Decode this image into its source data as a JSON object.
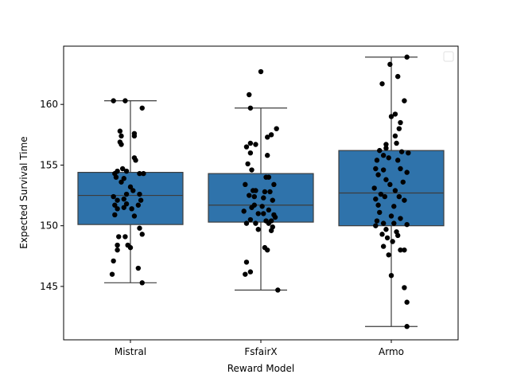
{
  "chart_data": {
    "type": "box",
    "title": "",
    "xlabel": "Reward Model",
    "ylabel": "Expected Survival Time",
    "ylim": [
      140.6,
      164.8
    ],
    "yticks": [
      145,
      150,
      155,
      160
    ],
    "categories": [
      "Mistral",
      "FsfairX",
      "Armo"
    ],
    "legend": "top-right (empty)",
    "grid": false,
    "colors": {
      "box": "#2f73ab",
      "edge": "#3d3d3d",
      "points": "#000000"
    },
    "boxes": [
      {
        "name": "Mistral",
        "whisker_low": 145.3,
        "q1": 150.1,
        "median": 152.5,
        "q3": 154.4,
        "whisker_high": 160.3
      },
      {
        "name": "FsfairX",
        "whisker_low": 144.7,
        "q1": 150.3,
        "median": 151.7,
        "q3": 154.3,
        "whisker_high": 159.7
      },
      {
        "name": "Armo",
        "whisker_low": 141.7,
        "q1": 150.0,
        "median": 152.7,
        "q3": 156.2,
        "whisker_high": 163.9
      }
    ],
    "points": [
      [
        [
          -0.13,
          160.3
        ],
        [
          -0.04,
          160.3
        ],
        [
          0.09,
          159.7
        ],
        [
          -0.08,
          157.8
        ],
        [
          -0.07,
          157.4
        ],
        [
          0.03,
          157.6
        ],
        [
          0.03,
          157.4
        ],
        [
          -0.08,
          156.9
        ],
        [
          -0.07,
          156.7
        ],
        [
          0.03,
          155.6
        ],
        [
          0.04,
          155.4
        ],
        [
          -0.12,
          154.3
        ],
        [
          -0.1,
          154.5
        ],
        [
          -0.06,
          154.7
        ],
        [
          -0.03,
          154.5
        ],
        [
          0.07,
          154.3
        ],
        [
          0.1,
          154.3
        ],
        [
          -0.11,
          154.0
        ],
        [
          -0.05,
          153.9
        ],
        [
          -0.07,
          153.6
        ],
        [
          0.0,
          153.2
        ],
        [
          -0.13,
          152.4
        ],
        [
          -0.03,
          152.6
        ],
        [
          0.02,
          152.9
        ],
        [
          0.07,
          152.6
        ],
        [
          -0.1,
          152.1
        ],
        [
          -0.05,
          152.2
        ],
        [
          0.08,
          152.1
        ],
        [
          -0.12,
          151.7
        ],
        [
          -0.03,
          151.8
        ],
        [
          0.06,
          151.7
        ],
        [
          -0.1,
          151.4
        ],
        [
          -0.05,
          151.5
        ],
        [
          0.01,
          151.4
        ],
        [
          -0.12,
          150.9
        ],
        [
          0.03,
          150.8
        ],
        [
          0.07,
          149.8
        ],
        [
          -0.09,
          149.1
        ],
        [
          -0.04,
          149.1
        ],
        [
          0.09,
          149.3
        ],
        [
          -0.1,
          148.4
        ],
        [
          -0.02,
          148.4
        ],
        [
          0.0,
          148.2
        ],
        [
          -0.1,
          148.0
        ],
        [
          -0.13,
          147.1
        ],
        [
          0.06,
          146.5
        ],
        [
          -0.14,
          146.0
        ],
        [
          0.09,
          145.3
        ]
      ],
      [
        [
          0.0,
          162.7
        ],
        [
          -0.09,
          160.8
        ],
        [
          -0.08,
          159.7
        ],
        [
          0.12,
          158.0
        ],
        [
          0.05,
          157.3
        ],
        [
          0.08,
          157.5
        ],
        [
          -0.08,
          156.8
        ],
        [
          -0.11,
          156.5
        ],
        [
          -0.04,
          156.7
        ],
        [
          -0.08,
          156.0
        ],
        [
          0.05,
          155.8
        ],
        [
          -0.1,
          155.1
        ],
        [
          -0.07,
          154.6
        ],
        [
          0.04,
          154.0
        ],
        [
          0.06,
          154.0
        ],
        [
          -0.12,
          153.4
        ],
        [
          0.1,
          153.4
        ],
        [
          -0.06,
          152.9
        ],
        [
          -0.04,
          152.9
        ],
        [
          0.03,
          152.8
        ],
        [
          0.07,
          152.8
        ],
        [
          -0.09,
          152.5
        ],
        [
          -0.05,
          152.4
        ],
        [
          0.02,
          152.3
        ],
        [
          0.09,
          152.1
        ],
        [
          -0.05,
          151.7
        ],
        [
          -0.07,
          151.5
        ],
        [
          0.01,
          151.6
        ],
        [
          0.06,
          151.3
        ],
        [
          -0.13,
          151.2
        ],
        [
          -0.02,
          151.0
        ],
        [
          0.02,
          151.0
        ],
        [
          0.1,
          150.9
        ],
        [
          -0.08,
          150.5
        ],
        [
          0.04,
          150.4
        ],
        [
          0.08,
          150.4
        ],
        [
          0.11,
          150.7
        ],
        [
          -0.11,
          150.2
        ],
        [
          -0.04,
          150.2
        ],
        [
          0.06,
          150.2
        ],
        [
          0.09,
          149.9
        ],
        [
          -0.02,
          149.7
        ],
        [
          0.08,
          149.6
        ],
        [
          0.03,
          148.2
        ],
        [
          0.05,
          148.0
        ],
        [
          -0.11,
          147.0
        ],
        [
          -0.08,
          146.2
        ],
        [
          -0.12,
          146.0
        ],
        [
          0.13,
          144.7
        ]
      ],
      [
        [
          -0.01,
          163.3
        ],
        [
          0.12,
          163.9
        ],
        [
          0.05,
          162.3
        ],
        [
          -0.07,
          161.7
        ],
        [
          0.1,
          160.3
        ],
        [
          0.0,
          159.0
        ],
        [
          0.03,
          159.2
        ],
        [
          0.07,
          158.5
        ],
        [
          0.06,
          158.0
        ],
        [
          0.03,
          157.4
        ],
        [
          -0.04,
          156.7
        ],
        [
          0.04,
          156.8
        ],
        [
          -0.09,
          156.2
        ],
        [
          -0.04,
          156.4
        ],
        [
          0.08,
          156.1
        ],
        [
          0.13,
          156.0
        ],
        [
          -0.06,
          155.8
        ],
        [
          -0.11,
          155.4
        ],
        [
          -0.02,
          155.6
        ],
        [
          0.05,
          155.4
        ],
        [
          -0.12,
          154.7
        ],
        [
          -0.06,
          154.6
        ],
        [
          0.07,
          154.7
        ],
        [
          0.12,
          154.4
        ],
        [
          -0.1,
          154.2
        ],
        [
          -0.04,
          153.8
        ],
        [
          0.09,
          153.6
        ],
        [
          -0.01,
          153.4
        ],
        [
          -0.13,
          153.1
        ],
        [
          0.03,
          152.9
        ],
        [
          -0.08,
          152.6
        ],
        [
          -0.12,
          152.2
        ],
        [
          -0.05,
          152.4
        ],
        [
          0.06,
          152.4
        ],
        [
          0.1,
          152.1
        ],
        [
          -0.1,
          151.7
        ],
        [
          0.02,
          151.6
        ],
        [
          -0.09,
          151.1
        ],
        [
          0.0,
          150.8
        ],
        [
          0.07,
          150.6
        ],
        [
          -0.11,
          150.4
        ],
        [
          -0.06,
          150.2
        ],
        [
          0.02,
          150.2
        ],
        [
          -0.12,
          150.0
        ],
        [
          0.12,
          150.1
        ],
        [
          -0.04,
          149.7
        ],
        [
          0.04,
          149.5
        ],
        [
          -0.07,
          149.3
        ],
        [
          -0.03,
          149.0
        ],
        [
          0.05,
          149.2
        ],
        [
          0.01,
          148.7
        ],
        [
          -0.06,
          148.3
        ],
        [
          0.07,
          148.0
        ],
        [
          0.1,
          148.0
        ],
        [
          -0.02,
          147.6
        ],
        [
          0.0,
          145.9
        ],
        [
          0.1,
          144.9
        ],
        [
          0.12,
          143.7
        ],
        [
          0.12,
          141.7
        ]
      ]
    ]
  }
}
